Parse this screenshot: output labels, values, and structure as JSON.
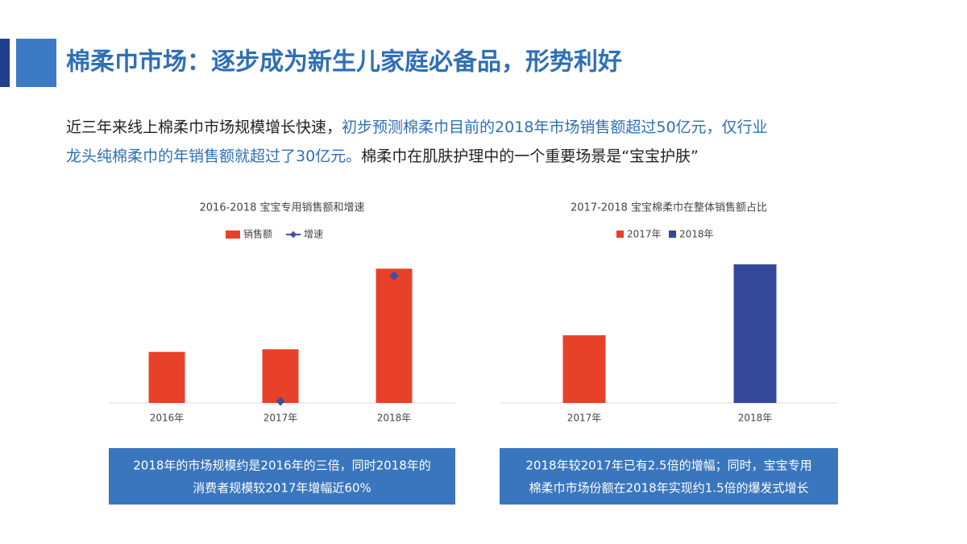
{
  "header": {
    "title": "棉柔巾市场：逐步成为新生儿家庭必备品，形势利好"
  },
  "paragraph": [
    [
      {
        "text": "近三年来线上棉柔巾市场规模增长快速，",
        "color": "#222222"
      },
      {
        "text": "初步预测棉柔巾目前的2018年市场销售额超过50亿元，仅行业",
        "color": "#2f6fb6"
      }
    ],
    [
      {
        "text": "龙头纯棉柔巾的年销售额就超过了30亿元。",
        "color": "#2f6fb6"
      },
      {
        "text": "棉柔巾在肌肤护理中的一个重要场景是“宝宝护肤”",
        "color": "#222222"
      }
    ]
  ],
  "chart_data": [
    {
      "type": "bar",
      "title": "2016-2018 宝宝专用销售额和增速",
      "categories": [
        "2016年",
        "2017年",
        "2018年"
      ],
      "series": [
        {
          "name": "销售额",
          "color": "#e8412a",
          "values": [
            19,
            20,
            50
          ]
        },
        {
          "name": "增速",
          "color": "#3d4fa0",
          "values": [
            null,
            2,
            150
          ],
          "axis": "y2"
        }
      ],
      "ylim": [
        0,
        60
      ],
      "y2lim": [
        0,
        190
      ],
      "caption": [
        "2018年的市场规模约是2016年的三倍，同时2018年的",
        "消费者规模较2017年增幅近60%"
      ]
    },
    {
      "type": "bar",
      "title": "2017-2018 宝宝棉柔巾在整体销售额占比",
      "categories": [
        "2017年",
        "2018年"
      ],
      "values": [
        0.42,
        0.86
      ],
      "colors": [
        "#e8412a",
        "#34489a"
      ],
      "ylim": [
        0,
        1
      ],
      "caption": [
        "2018年较2017年已有2.5倍的增幅；同时，宝宝专用",
        "棉柔巾市场份额在2018年实现约1.5倍的爆发式增长"
      ]
    }
  ]
}
